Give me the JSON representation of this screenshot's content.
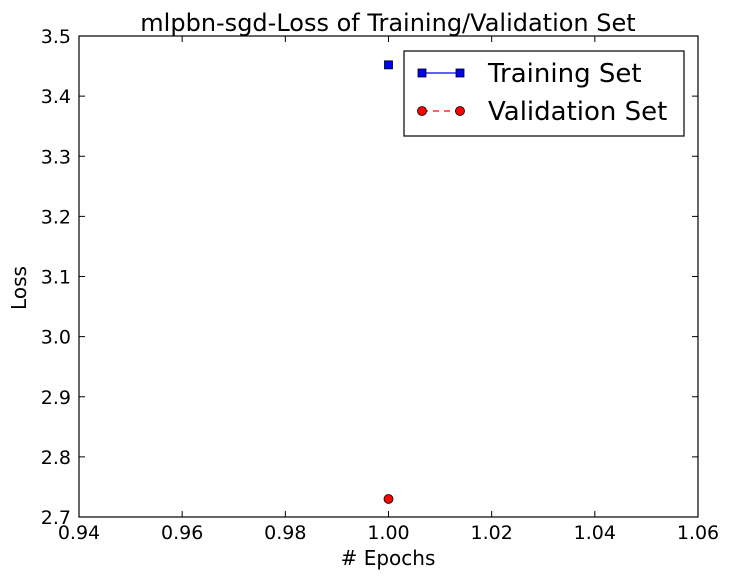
{
  "chart_data": {
    "type": "line",
    "title": "mlpbn-sgd-Loss of Training/Validation Set",
    "xlabel": "# Epochs",
    "ylabel": "Loss",
    "xlim": [
      0.94,
      1.06
    ],
    "ylim": [
      2.7,
      3.5
    ],
    "xticks": [
      "0.94",
      "0.96",
      "0.98",
      "1.00",
      "1.02",
      "1.04",
      "1.06"
    ],
    "yticks": [
      "2.7",
      "2.8",
      "2.9",
      "3.0",
      "3.1",
      "3.2",
      "3.3",
      "3.4",
      "3.5"
    ],
    "grid": false,
    "legend_position": "top-right",
    "series": [
      {
        "name": "Training Set",
        "x": [
          1.0
        ],
        "values": [
          3.452
        ],
        "color": "#0000ff",
        "marker": "square",
        "line_style": "solid"
      },
      {
        "name": "Validation Set",
        "x": [
          1.0
        ],
        "values": [
          2.73
        ],
        "color": "#ff0000",
        "marker": "circle",
        "line_style": "dashed"
      }
    ]
  }
}
